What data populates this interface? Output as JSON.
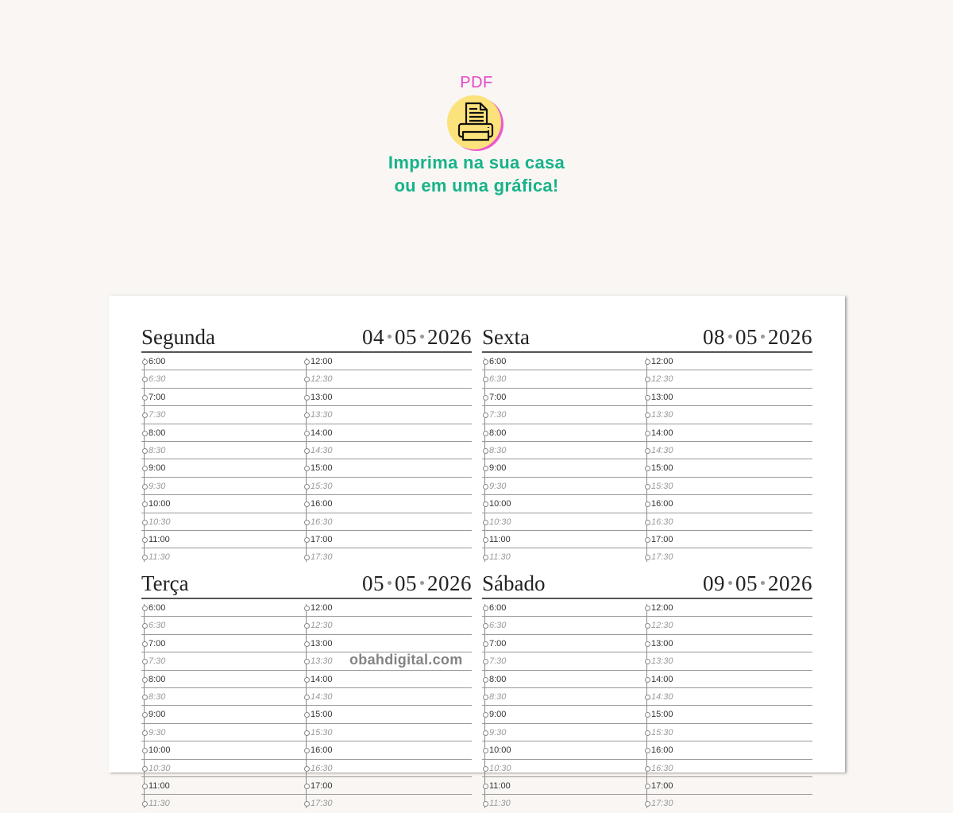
{
  "promo": {
    "format_label": "PDF",
    "icon": "printer-icon",
    "tagline_line1": "Imprima na sua casa",
    "tagline_line2": "ou em uma gráfica!",
    "colors": {
      "pdf": "#e545c8",
      "tagline": "#17b38a",
      "badge": "#fce27a"
    }
  },
  "planner": {
    "left_times": [
      "6:00",
      "6:30",
      "7:00",
      "7:30",
      "8:00",
      "8:30",
      "9:00",
      "9:30",
      "10:00",
      "10:30",
      "11:00",
      "11:30"
    ],
    "right_times": [
      "12:00",
      "12:30",
      "13:00",
      "13:30",
      "14:00",
      "14:30",
      "15:00",
      "15:30",
      "16:00",
      "16:30",
      "17:00",
      "17:30"
    ],
    "days": [
      {
        "name": "Segunda",
        "day": "04",
        "month": "05",
        "year": "2026"
      },
      {
        "name": "Sexta",
        "day": "08",
        "month": "05",
        "year": "2026"
      },
      {
        "name": "Terça",
        "day": "05",
        "month": "05",
        "year": "2026"
      },
      {
        "name": "Sábado",
        "day": "09",
        "month": "05",
        "year": "2026"
      }
    ]
  },
  "watermark": "obahdigital.com"
}
